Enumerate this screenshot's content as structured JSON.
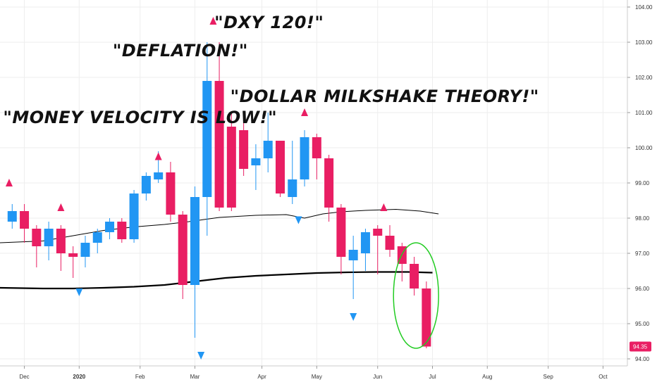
{
  "chart_data": {
    "type": "candlestick",
    "symbol_last_value": "94.35",
    "y_ticks": [
      "104.00",
      "103.00",
      "102.00",
      "101.00",
      "100.00",
      "99.00",
      "98.00",
      "97.00",
      "96.00",
      "95.00",
      "94.00"
    ],
    "ylim": [
      93.8,
      104.2
    ],
    "x_ticks": [
      {
        "label": "Dec",
        "x": 2,
        "bold": false
      },
      {
        "label": "2020",
        "x": 11,
        "bold": true
      },
      {
        "label": "Feb",
        "x": 21,
        "bold": false
      },
      {
        "label": "Mar",
        "x": 30,
        "bold": false
      },
      {
        "label": "Apr",
        "x": 41,
        "bold": false
      },
      {
        "label": "May",
        "x": 50,
        "bold": false
      },
      {
        "label": "Jun",
        "x": 60,
        "bold": false
      },
      {
        "label": "Jul",
        "x": 69,
        "bold": false
      },
      {
        "label": "Aug",
        "x": 78,
        "bold": false
      },
      {
        "label": "Sep",
        "x": 88,
        "bold": false
      },
      {
        "label": "Oct",
        "x": 97,
        "bold": false
      }
    ],
    "xlim": [
      -2,
      101
    ],
    "candles": [
      {
        "x": 0,
        "open": 97.9,
        "close": 98.2,
        "high": 98.4,
        "low": 97.7
      },
      {
        "x": 2,
        "open": 98.2,
        "close": 97.7,
        "high": 98.4,
        "low": 97.3
      },
      {
        "x": 4,
        "open": 97.7,
        "close": 97.2,
        "high": 97.8,
        "low": 96.6
      },
      {
        "x": 6,
        "open": 97.2,
        "close": 97.7,
        "high": 97.9,
        "low": 96.8
      },
      {
        "x": 8,
        "open": 97.7,
        "close": 97.0,
        "high": 97.8,
        "low": 96.5
      },
      {
        "x": 10,
        "open": 97.0,
        "close": 96.9,
        "high": 97.2,
        "low": 96.3
      },
      {
        "x": 12,
        "open": 96.9,
        "close": 97.3,
        "high": 97.5,
        "low": 96.6
      },
      {
        "x": 14,
        "open": 97.3,
        "close": 97.6,
        "high": 97.7,
        "low": 97.0
      },
      {
        "x": 16,
        "open": 97.6,
        "close": 97.9,
        "high": 98.0,
        "low": 97.4
      },
      {
        "x": 18,
        "open": 97.9,
        "close": 97.4,
        "high": 98.0,
        "low": 97.3
      },
      {
        "x": 20,
        "open": 97.4,
        "close": 98.7,
        "high": 98.8,
        "low": 97.3
      },
      {
        "x": 22,
        "open": 98.7,
        "close": 99.2,
        "high": 99.3,
        "low": 98.5
      },
      {
        "x": 24,
        "open": 99.1,
        "close": 99.3,
        "high": 99.9,
        "low": 99.0
      },
      {
        "x": 26,
        "open": 99.3,
        "close": 98.1,
        "high": 99.6,
        "low": 97.9
      },
      {
        "x": 28,
        "open": 98.1,
        "close": 96.1,
        "high": 98.2,
        "low": 95.7
      },
      {
        "x": 30,
        "open": 96.1,
        "close": 98.6,
        "high": 98.9,
        "low": 94.6
      },
      {
        "x": 32,
        "open": 98.6,
        "close": 101.9,
        "high": 103.0,
        "low": 97.5
      },
      {
        "x": 34,
        "open": 101.9,
        "close": 98.3,
        "high": 103.0,
        "low": 98.2
      },
      {
        "x": 36,
        "open": 100.6,
        "close": 98.3,
        "high": 101.0,
        "low": 98.2
      },
      {
        "x": 38,
        "open": 100.5,
        "close": 99.4,
        "high": 100.9,
        "low": 99.2
      },
      {
        "x": 40,
        "open": 99.5,
        "close": 99.7,
        "high": 100.1,
        "low": 98.8
      },
      {
        "x": 42,
        "open": 99.7,
        "close": 100.2,
        "high": 101.0,
        "low": 99.3
      },
      {
        "x": 44,
        "open": 100.2,
        "close": 98.7,
        "high": 100.2,
        "low": 98.6
      },
      {
        "x": 46,
        "open": 98.6,
        "close": 99.1,
        "high": 100.2,
        "low": 98.4
      },
      {
        "x": 48,
        "open": 99.1,
        "close": 100.3,
        "high": 100.5,
        "low": 98.9
      },
      {
        "x": 50,
        "open": 100.3,
        "close": 99.7,
        "high": 100.4,
        "low": 99.1
      },
      {
        "x": 52,
        "open": 99.7,
        "close": 98.3,
        "high": 99.8,
        "low": 97.9
      },
      {
        "x": 54,
        "open": 98.3,
        "close": 96.9,
        "high": 98.4,
        "low": 96.4
      },
      {
        "x": 56,
        "open": 96.8,
        "close": 97.1,
        "high": 97.5,
        "low": 95.7
      },
      {
        "x": 58,
        "open": 97.0,
        "close": 97.6,
        "high": 97.7,
        "low": 96.5
      },
      {
        "x": 60,
        "open": 97.7,
        "close": 97.5,
        "high": 97.8,
        "low": 96.4
      },
      {
        "x": 62,
        "open": 97.5,
        "close": 97.1,
        "high": 97.8,
        "low": 96.9
      },
      {
        "x": 64,
        "open": 97.2,
        "close": 96.7,
        "high": 97.3,
        "low": 96.2
      },
      {
        "x": 66,
        "open": 96.7,
        "close": 96.0,
        "high": 96.9,
        "low": 95.8
      },
      {
        "x": 68,
        "open": 96.0,
        "close": 94.35,
        "high": 96.2,
        "low": 94.3
      }
    ],
    "ma_short": [
      [
        -2,
        97.3
      ],
      [
        5,
        97.35
      ],
      [
        10,
        97.5
      ],
      [
        15,
        97.65
      ],
      [
        20,
        97.75
      ],
      [
        25,
        97.82
      ],
      [
        29,
        97.9
      ],
      [
        34,
        98.02
      ],
      [
        40,
        98.08
      ],
      [
        45,
        98.1
      ],
      [
        48,
        98.0
      ],
      [
        51,
        98.12
      ],
      [
        54,
        98.18
      ],
      [
        58,
        98.22
      ],
      [
        63,
        98.25
      ],
      [
        67,
        98.2
      ],
      [
        70,
        98.12
      ]
    ],
    "ma_long": [
      [
        -2,
        96.02
      ],
      [
        5,
        96.0
      ],
      [
        10,
        96.0
      ],
      [
        15,
        96.02
      ],
      [
        20,
        96.05
      ],
      [
        25,
        96.1
      ],
      [
        30,
        96.2
      ],
      [
        35,
        96.3
      ],
      [
        40,
        96.36
      ],
      [
        45,
        96.4
      ],
      [
        50,
        96.44
      ],
      [
        55,
        96.46
      ],
      [
        60,
        96.47
      ],
      [
        65,
        96.47
      ],
      [
        69,
        96.45
      ]
    ],
    "markers_up": [
      [
        -0.5,
        99.0
      ],
      [
        8,
        98.3
      ],
      [
        24,
        99.75
      ],
      [
        33,
        103.6
      ],
      [
        48,
        101.0
      ],
      [
        61,
        98.3
      ]
    ],
    "markers_down": [
      [
        11,
        95.9
      ],
      [
        31,
        94.1
      ],
      [
        47,
        97.95
      ],
      [
        56,
        95.2
      ]
    ],
    "annotations": [
      {
        "text": "\"MONEY VELOCITY IS LOW!\"",
        "x": -1.5,
        "y": 100.7
      },
      {
        "text": "\"DEFLATION!\"",
        "x": 16.5,
        "y": 102.6
      },
      {
        "text": "\"DXY 120!\"",
        "x": 33.2,
        "y": 103.4
      },
      {
        "text": "\"DOLLAR MILKSHAKE THEORY!\"",
        "x": 35.8,
        "y": 101.3
      }
    ],
    "highlight_ellipse": {
      "cx": 66.3,
      "cy": 95.8,
      "rx": 3.7,
      "ry": 1.5
    },
    "colors": {
      "up": "#2196f3",
      "down": "#e91e63",
      "ma": "#000000",
      "grid": "#eeeeee",
      "ellipse": "#22cc22",
      "marker_up": "#e91e63",
      "marker_down": "#2196f3",
      "last_label_bg": "#e91e63"
    }
  }
}
